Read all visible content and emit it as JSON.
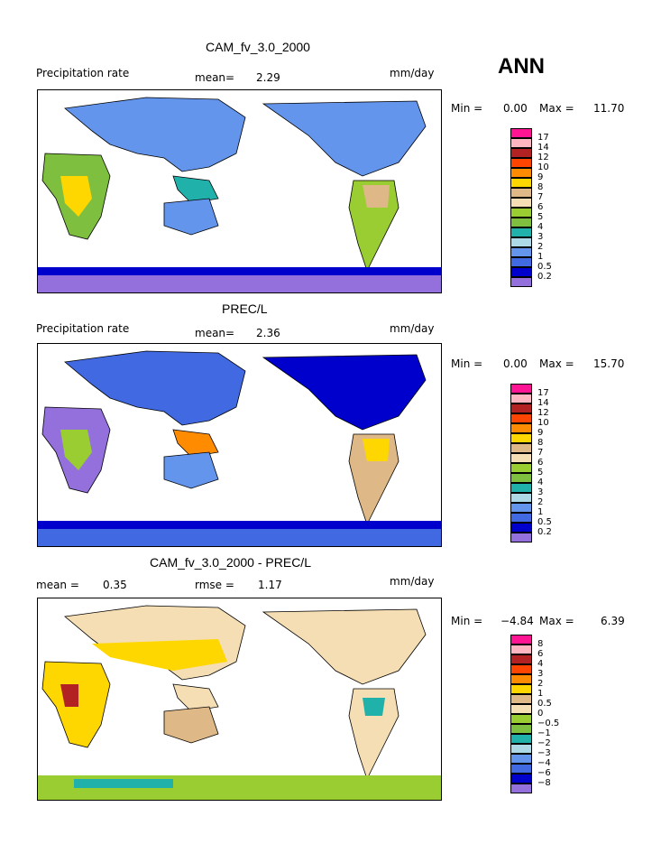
{
  "season": "ANN",
  "panels": [
    {
      "title": "CAM_fv_3.0_2000",
      "left_label": "Precipitation rate",
      "mid_label": "mean=",
      "mid_value": "2.29",
      "unit": "mm/day",
      "minmax": {
        "min_label": "Min =",
        "min_value": "0.00",
        "max_label": "Max =",
        "max_value": "11.70"
      },
      "legend": [
        "17",
        "14",
        "12",
        "10",
        "9",
        "8",
        "7",
        "6",
        "5",
        "4",
        "3",
        "2",
        "1",
        "0.5",
        "0.2"
      ]
    },
    {
      "title": "PREC/L",
      "left_label": "Precipitation rate",
      "mid_label": "mean=",
      "mid_value": "2.36",
      "unit": "mm/day",
      "minmax": {
        "min_label": "Min =",
        "min_value": "0.00",
        "max_label": "Max =",
        "max_value": "15.70"
      },
      "legend": [
        "17",
        "14",
        "12",
        "10",
        "9",
        "8",
        "7",
        "6",
        "5",
        "4",
        "3",
        "2",
        "1",
        "0.5",
        "0.2"
      ]
    },
    {
      "title": "CAM_fv_3.0_2000 - PREC/L",
      "left_label": "mean =",
      "left_value": "0.35",
      "mid_label": "rmse =",
      "mid_value": "1.17",
      "unit": "mm/day",
      "minmax": {
        "min_label": "Min =",
        "min_value": "−4.84",
        "max_label": "Max =",
        "max_value": "6.39"
      },
      "legend": [
        "8",
        "6",
        "4",
        "3",
        "2",
        "1",
        "0.5",
        "0",
        "−0.5",
        "−1",
        "−2",
        "−3",
        "−4",
        "−6",
        "−8"
      ]
    }
  ],
  "colors": {
    "scale": [
      "#ff1493",
      "#ffb6c1",
      "#b22222",
      "#ff4500",
      "#ff8c00",
      "#ffd700",
      "#deb887",
      "#f5deb3",
      "#9acd32",
      "#7fbf3f",
      "#20b2aa",
      "#add8e6",
      "#6495ed",
      "#4169e1",
      "#0000cd",
      "#9370db"
    ],
    "ocean": "#ffffff",
    "coast": "#000000"
  }
}
